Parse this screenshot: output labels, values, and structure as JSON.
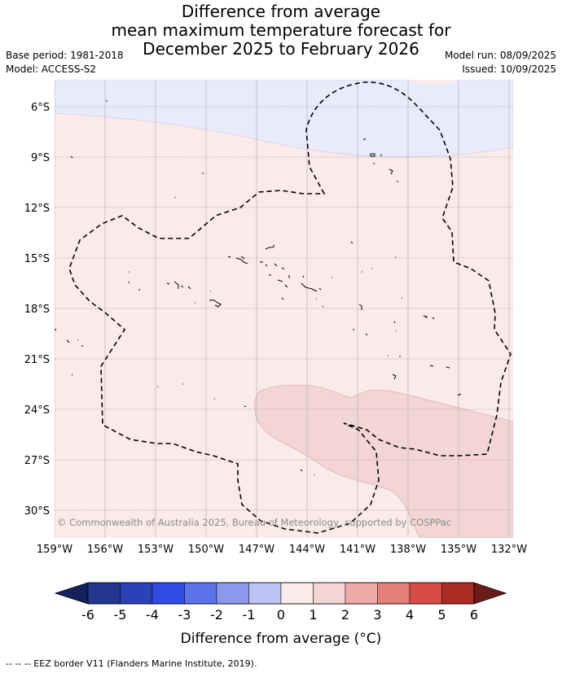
{
  "title": {
    "line1": "Difference from average",
    "line2": "mean maximum temperature forecast for",
    "line3": "December 2025 to February 2026"
  },
  "meta": {
    "base_period": "Base period: 1981-2018",
    "model": "Model: ACCESS-S2",
    "model_run": "Model run: 08/09/2025",
    "issued": "Issued: 10/09/2025"
  },
  "map": {
    "lat_labels": [
      "6°S",
      "9°S",
      "12°S",
      "15°S",
      "18°S",
      "21°S",
      "24°S",
      "27°S",
      "30°S"
    ],
    "lon_labels": [
      "159°W",
      "156°W",
      "153°W",
      "150°W",
      "147°W",
      "144°W",
      "141°W",
      "138°W",
      "135°W",
      "132°W"
    ],
    "copyright": "© Commonwealth of Australia 2025, Bureau of Meteorology, supported by COSPPac",
    "colors": {
      "neg_0_1": "#e9ebfb",
      "pos_0_1": "#fbeaea",
      "pos_1_2": "#f4d5d5",
      "border": "#000000"
    }
  },
  "colorbar": {
    "ticks": [
      "-6",
      "-5",
      "-4",
      "-3",
      "-2",
      "-1",
      "0",
      "1",
      "2",
      "3",
      "4",
      "5",
      "6"
    ],
    "colors": [
      "#24368f",
      "#2a41b8",
      "#2f4ce4",
      "#5c73e9",
      "#8a99ed",
      "#bcc3f3",
      "#e9ebfb",
      "#fbeaea",
      "#f4d5d5",
      "#eeaaa9",
      "#e58079",
      "#d94c45",
      "#aa2a24"
    ],
    "under_color": "#152060",
    "over_color": "#6e1a17",
    "label": "Difference from average (°C)"
  },
  "footer": "-- -- -- EEZ border V11 (Flanders Marine Institute, 2019)."
}
